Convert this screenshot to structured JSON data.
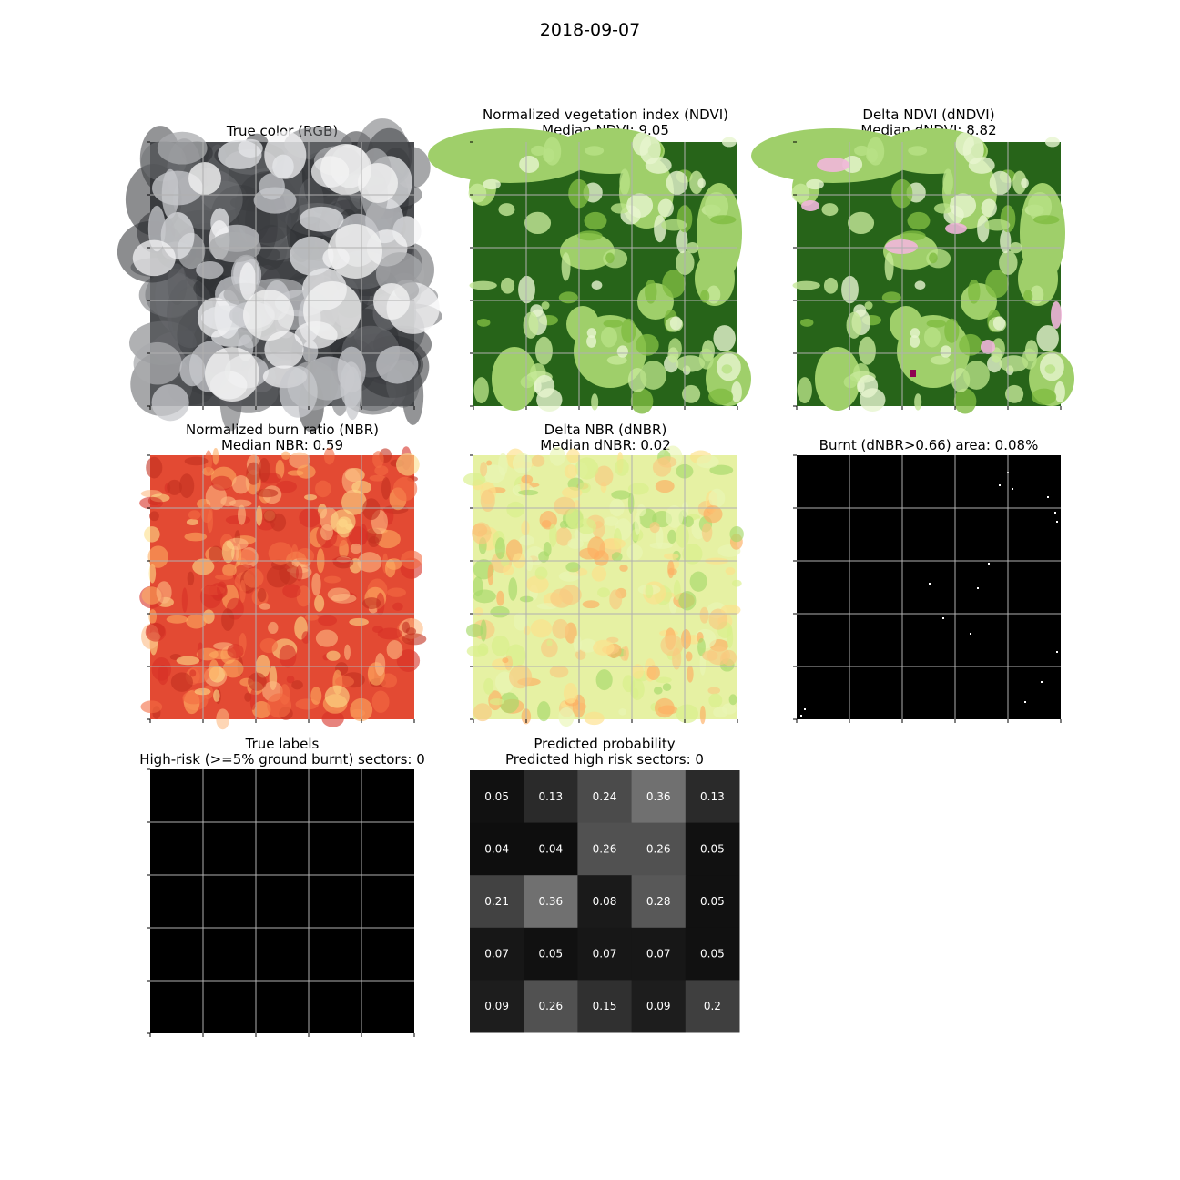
{
  "figure": {
    "title": "2018-09-07"
  },
  "panels": [
    {
      "key": "rgb",
      "title": "True color (RGB)",
      "subtitle": "",
      "kind": "image",
      "palette": "gray-clouds"
    },
    {
      "key": "ndvi",
      "title": "Normalized vegetation index (NDVI)",
      "subtitle": "Median NDVI: 9.05",
      "kind": "image",
      "palette": "green-vegetation"
    },
    {
      "key": "dndvi",
      "title": "Delta NDVI (dNDVI)",
      "subtitle": "Median dNDVI: 8.82",
      "kind": "image",
      "palette": "green-pink"
    },
    {
      "key": "nbr",
      "title": "Normalized burn ratio (NBR)",
      "subtitle": "Median NBR: 0.59",
      "kind": "image",
      "palette": "red-yellow"
    },
    {
      "key": "dnbr",
      "title": "Delta NBR (dNBR)",
      "subtitle": "Median dNBR: 0.02",
      "kind": "image",
      "palette": "yellow-green"
    },
    {
      "key": "burnt",
      "title": "Burnt (dNBR>0.66) area: 0.08%",
      "subtitle": "",
      "kind": "binary",
      "palette": "black-white"
    },
    {
      "key": "labels",
      "title": "True labels",
      "subtitle": "High-risk (>=5% ground burnt) sectors: 0",
      "kind": "binary",
      "palette": "black"
    },
    {
      "key": "prob",
      "title": "Predicted probability",
      "subtitle": "Predicted high risk sectors: 0",
      "kind": "heatmap",
      "palette": "gray"
    }
  ],
  "chart_data": {
    "type": "heatmap",
    "title": "Predicted probability",
    "subtitle": "Predicted high risk sectors: 0",
    "rows": 5,
    "cols": 5,
    "values": [
      [
        0.05,
        0.13,
        0.24,
        0.36,
        0.13
      ],
      [
        0.04,
        0.04,
        0.26,
        0.26,
        0.05
      ],
      [
        0.21,
        0.36,
        0.08,
        0.28,
        0.05
      ],
      [
        0.07,
        0.05,
        0.07,
        0.07,
        0.05
      ],
      [
        0.09,
        0.26,
        0.15,
        0.09,
        0.2
      ]
    ],
    "labels": [
      [
        "0.05",
        "0.13",
        "0.24",
        "0.36",
        "0.13"
      ],
      [
        "0.04",
        "0.04",
        "0.26",
        "0.26",
        "0.05"
      ],
      [
        "0.21",
        "0.36",
        "0.08",
        "0.28",
        "0.05"
      ],
      [
        "0.07",
        "0.05",
        "0.07",
        "0.07",
        "0.05"
      ],
      [
        "0.09",
        "0.26",
        "0.15",
        "0.09",
        "0.2"
      ]
    ],
    "colormap": "gray",
    "grid": false
  }
}
